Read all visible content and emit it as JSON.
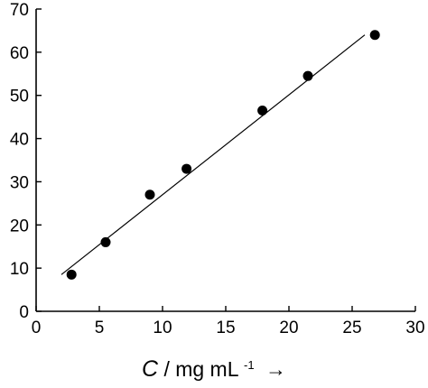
{
  "chart_data": {
    "type": "scatter",
    "title": "",
    "xlabel": {
      "variable": "C",
      "unit": " / mg mL",
      "unit_sup": "-1",
      "arrow": "→"
    },
    "ylabel": "",
    "xlim": [
      0,
      30
    ],
    "ylim": [
      0,
      70
    ],
    "xticks": [
      0,
      5,
      10,
      15,
      20,
      25,
      30
    ],
    "yticks": [
      0,
      10,
      20,
      30,
      40,
      50,
      60,
      70
    ],
    "grid": false,
    "legend": null,
    "series": [
      {
        "points": [
          {
            "x": 2.8,
            "y": 8.5
          },
          {
            "x": 5.5,
            "y": 16.0
          },
          {
            "x": 9.0,
            "y": 27.0
          },
          {
            "x": 11.9,
            "y": 33.0
          },
          {
            "x": 17.9,
            "y": 46.5
          },
          {
            "x": 21.5,
            "y": 54.5
          },
          {
            "x": 26.8,
            "y": 64.0
          }
        ],
        "color": "#000000"
      }
    ],
    "fit_line": {
      "points": [
        {
          "x": 2.0,
          "y": 8.5
        },
        {
          "x": 26.0,
          "y": 64.0
        }
      ],
      "color": "#000000"
    }
  }
}
